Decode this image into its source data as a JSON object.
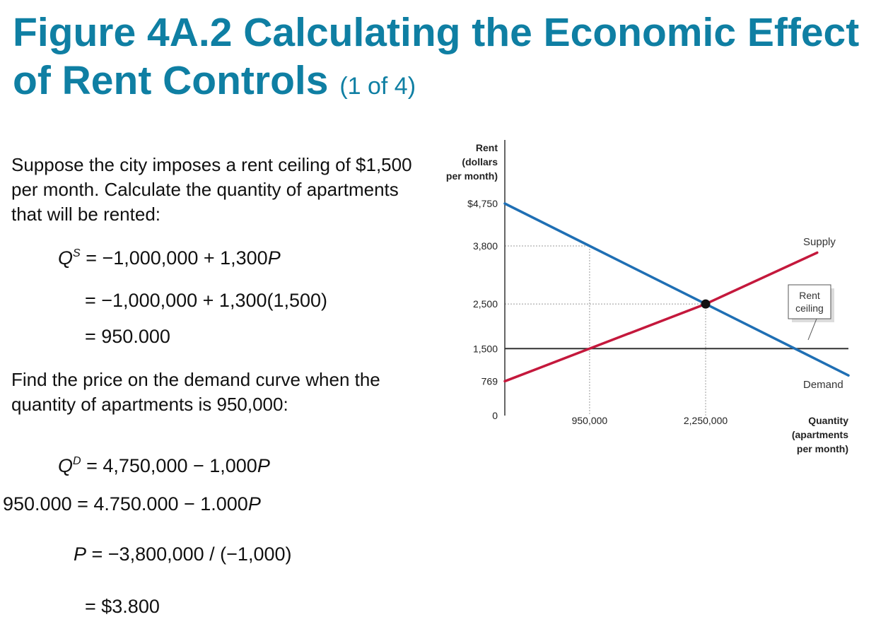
{
  "title": {
    "main": "Figure 4A.2 Calculating the Economic Effect of Rent Controls",
    "sub": "(1 of 4)"
  },
  "text": {
    "p1": "Suppose the city imposes a rent ceiling of $1,500 per month. Calculate the quantity of apartments that will be rented:",
    "p2": "Find the price on the demand curve when the quantity of apartments is 950,000:"
  },
  "equations": {
    "e1_rhs": "= −1,000,000 + 1,300",
    "e1_var": "P",
    "e2": "= −1,000,000 + 1,300(1,500)",
    "e3": "= 950.000",
    "e4_rhs": "= 4,750,000 − 1,000",
    "e4_var": "P",
    "e5_lhs": "950.000 = 4.750.000 − 1.000",
    "e5_var": "P",
    "e6_var": "P",
    "e6_rhs": " = −3,800,000 / (−1,000)",
    "e7": "= $3.800"
  },
  "chart_data": {
    "type": "line",
    "ylabel": "Rent (dollars per month)",
    "xlabel": "Quantity (apartments per month)",
    "y_ticks": [
      "$4,750",
      "3,800",
      "2,500",
      "1,500",
      "769",
      "0"
    ],
    "x_ticks": [
      "950,000",
      "2,250,000"
    ],
    "xlim": [
      0,
      3850000
    ],
    "ylim": [
      0,
      4750
    ],
    "series": [
      {
        "name": "Demand",
        "color": "#1f6fb4",
        "x": [
          0,
          950000,
          2250000,
          3850000
        ],
        "y": [
          4750,
          3800,
          2500,
          900
        ]
      },
      {
        "name": "Supply",
        "color": "#c4183c",
        "x": [
          0,
          950000,
          2250000,
          3500000
        ],
        "y": [
          769,
          1500,
          2500,
          3650
        ]
      }
    ],
    "rent_ceiling": {
      "label": "Rent ceiling",
      "value": 1500,
      "color": "#333333"
    },
    "equilibrium": {
      "x": 2250000,
      "y": 2500
    }
  }
}
